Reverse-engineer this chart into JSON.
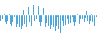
{
  "values": [
    -1.5,
    -2.0,
    -1.0,
    0.5,
    -2.0,
    -2.5,
    -1.5,
    0.2,
    -2.5,
    -3.0,
    -2.0,
    -0.5,
    -3.0,
    -3.5,
    -2.5,
    -1.0,
    -3.5,
    -4.0,
    -3.0,
    1.5,
    -2.5,
    -3.5,
    -2.0,
    2.5,
    -2.0,
    -3.0,
    -1.5,
    3.0,
    -1.5,
    -2.5,
    -1.0,
    2.8,
    -2.0,
    -3.0,
    -1.8,
    2.2,
    -2.5,
    -3.5,
    -2.2,
    1.5,
    -3.0,
    -4.0,
    -2.8,
    0.5,
    -3.5,
    -4.5,
    -3.2,
    -0.5,
    -4.0,
    -5.0,
    -3.8,
    -1.5,
    -3.0,
    -4.0,
    -2.8,
    -1.0,
    -2.5,
    -3.5,
    -2.2,
    -0.5,
    -2.0,
    -3.0,
    -1.8,
    0.2,
    -1.5,
    -2.5,
    -1.2,
    0.8,
    -1.0,
    -2.0,
    -0.8,
    1.2,
    -1.5,
    -2.5,
    -1.5,
    0.5,
    -2.0,
    -3.0,
    -2.0,
    -0.5
  ],
  "bar_color": "#4da6d9",
  "background_color": "#ffffff",
  "ylim_min": -6.0,
  "ylim_max": 4.5
}
